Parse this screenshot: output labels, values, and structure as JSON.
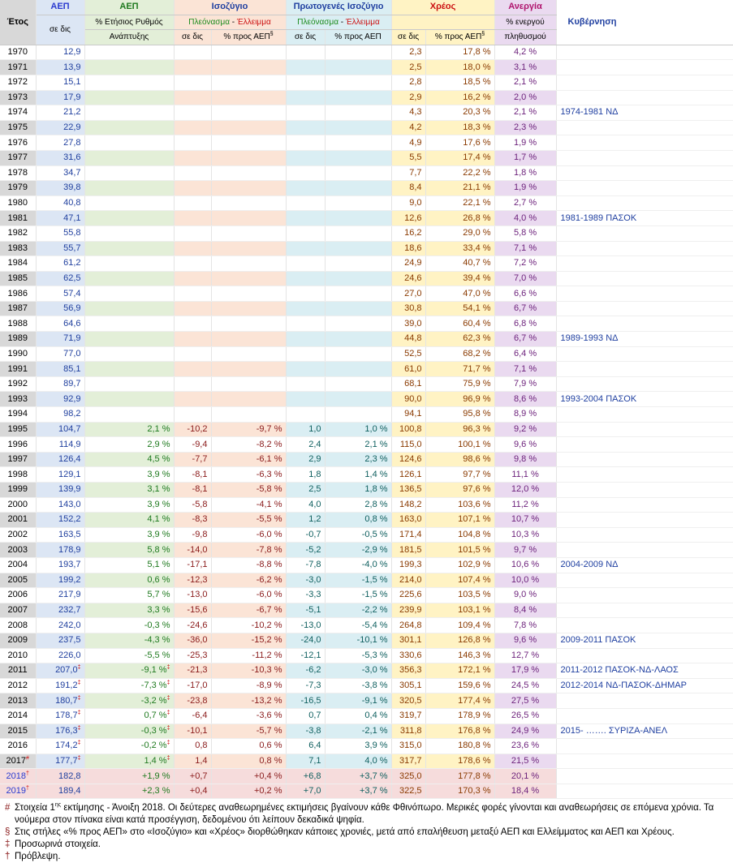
{
  "headers": {
    "year": "Έτος",
    "gdp_title": "ΑΕΠ",
    "gdp_unit": "σε δις",
    "growth_title": "ΑΕΠ",
    "growth_sub1": "% Ετήσιος Ρυθμός",
    "growth_sub2": "Ανάπτυξης",
    "balance_title": "Ισοζύγιο",
    "balance_surplus": "Πλεόνασμα",
    "balance_dash": " - ",
    "balance_deficit": "Έλλειμμα",
    "balance_col1": "σε δις",
    "balance_col2": "% προς ΑΕΠ",
    "balance_col2_sup": "§",
    "primary_title": "Πρωτογενές Ισοζύγιο",
    "primary_surplus": "Πλεόνασμα",
    "primary_dash": " - ",
    "primary_deficit": "Έλλειμμα",
    "primary_col1": "σε δις",
    "primary_col2": "% προς ΑΕΠ",
    "debt_title": "Χρέος",
    "debt_col1": "σε δις",
    "debt_col2": "% προς ΑΕΠ",
    "debt_col2_sup": "§",
    "unemp_title": "Ανεργία",
    "unemp_sub1": "% ενεργού",
    "unemp_sub2": "πληθυσμού",
    "gov_title": "Κυβέρνηση"
  },
  "rows": [
    {
      "year": "1970",
      "gdp": "12,9",
      "growth": "",
      "bal": "",
      "balp": "",
      "pri": "",
      "prip": "",
      "debt": "2,3",
      "debtp": "17,8 %",
      "unem": "4,2 %",
      "gov": ""
    },
    {
      "year": "1971",
      "gdp": "13,9",
      "growth": "",
      "bal": "",
      "balp": "",
      "pri": "",
      "prip": "",
      "debt": "2,5",
      "debtp": "18,0 %",
      "unem": "3,1 %",
      "gov": ""
    },
    {
      "year": "1972",
      "gdp": "15,1",
      "growth": "",
      "bal": "",
      "balp": "",
      "pri": "",
      "prip": "",
      "debt": "2,8",
      "debtp": "18,5 %",
      "unem": "2,1 %",
      "gov": ""
    },
    {
      "year": "1973",
      "gdp": "17,9",
      "growth": "",
      "bal": "",
      "balp": "",
      "pri": "",
      "prip": "",
      "debt": "2,9",
      "debtp": "16,2 %",
      "unem": "2,0 %",
      "gov": ""
    },
    {
      "year": "1974",
      "gdp": "21,2",
      "growth": "",
      "bal": "",
      "balp": "",
      "pri": "",
      "prip": "",
      "debt": "4,3",
      "debtp": "20,3 %",
      "unem": "2,1 %",
      "gov": "1974-1981 ΝΔ"
    },
    {
      "year": "1975",
      "gdp": "22,9",
      "growth": "",
      "bal": "",
      "balp": "",
      "pri": "",
      "prip": "",
      "debt": "4,2",
      "debtp": "18,3 %",
      "unem": "2,3 %",
      "gov": ""
    },
    {
      "year": "1976",
      "gdp": "27,8",
      "growth": "",
      "bal": "",
      "balp": "",
      "pri": "",
      "prip": "",
      "debt": "4,9",
      "debtp": "17,6 %",
      "unem": "1,9 %",
      "gov": ""
    },
    {
      "year": "1977",
      "gdp": "31,6",
      "growth": "",
      "bal": "",
      "balp": "",
      "pri": "",
      "prip": "",
      "debt": "5,5",
      "debtp": "17,4 %",
      "unem": "1,7 %",
      "gov": ""
    },
    {
      "year": "1978",
      "gdp": "34,7",
      "growth": "",
      "bal": "",
      "balp": "",
      "pri": "",
      "prip": "",
      "debt": "7,7",
      "debtp": "22,2 %",
      "unem": "1,8 %",
      "gov": ""
    },
    {
      "year": "1979",
      "gdp": "39,8",
      "growth": "",
      "bal": "",
      "balp": "",
      "pri": "",
      "prip": "",
      "debt": "8,4",
      "debtp": "21,1 %",
      "unem": "1,9 %",
      "gov": ""
    },
    {
      "year": "1980",
      "gdp": "40,8",
      "growth": "",
      "bal": "",
      "balp": "",
      "pri": "",
      "prip": "",
      "debt": "9,0",
      "debtp": "22,1 %",
      "unem": "2,7 %",
      "gov": ""
    },
    {
      "year": "1981",
      "gdp": "47,1",
      "growth": "",
      "bal": "",
      "balp": "",
      "pri": "",
      "prip": "",
      "debt": "12,6",
      "debtp": "26,8 %",
      "unem": "4,0 %",
      "gov": "1981-1989 ΠΑΣΟΚ"
    },
    {
      "year": "1982",
      "gdp": "55,8",
      "growth": "",
      "bal": "",
      "balp": "",
      "pri": "",
      "prip": "",
      "debt": "16,2",
      "debtp": "29,0 %",
      "unem": "5,8 %",
      "gov": ""
    },
    {
      "year": "1983",
      "gdp": "55,7",
      "growth": "",
      "bal": "",
      "balp": "",
      "pri": "",
      "prip": "",
      "debt": "18,6",
      "debtp": "33,4 %",
      "unem": "7,1 %",
      "gov": ""
    },
    {
      "year": "1984",
      "gdp": "61,2",
      "growth": "",
      "bal": "",
      "balp": "",
      "pri": "",
      "prip": "",
      "debt": "24,9",
      "debtp": "40,7 %",
      "unem": "7,2 %",
      "gov": ""
    },
    {
      "year": "1985",
      "gdp": "62,5",
      "growth": "",
      "bal": "",
      "balp": "",
      "pri": "",
      "prip": "",
      "debt": "24,6",
      "debtp": "39,4 %",
      "unem": "7,0 %",
      "gov": ""
    },
    {
      "year": "1986",
      "gdp": "57,4",
      "growth": "",
      "bal": "",
      "balp": "",
      "pri": "",
      "prip": "",
      "debt": "27,0",
      "debtp": "47,0 %",
      "unem": "6,6 %",
      "gov": ""
    },
    {
      "year": "1987",
      "gdp": "56,9",
      "growth": "",
      "bal": "",
      "balp": "",
      "pri": "",
      "prip": "",
      "debt": "30,8",
      "debtp": "54,1 %",
      "unem": "6,7 %",
      "gov": ""
    },
    {
      "year": "1988",
      "gdp": "64,6",
      "growth": "",
      "bal": "",
      "balp": "",
      "pri": "",
      "prip": "",
      "debt": "39,0",
      "debtp": "60,4 %",
      "unem": "6,8 %",
      "gov": ""
    },
    {
      "year": "1989",
      "gdp": "71,9",
      "growth": "",
      "bal": "",
      "balp": "",
      "pri": "",
      "prip": "",
      "debt": "44,8",
      "debtp": "62,3 %",
      "unem": "6,7 %",
      "gov": "1989-1993 ΝΔ"
    },
    {
      "year": "1990",
      "gdp": "77,0",
      "growth": "",
      "bal": "",
      "balp": "",
      "pri": "",
      "prip": "",
      "debt": "52,5",
      "debtp": "68,2 %",
      "unem": "6,4 %",
      "gov": ""
    },
    {
      "year": "1991",
      "gdp": "85,1",
      "growth": "",
      "bal": "",
      "balp": "",
      "pri": "",
      "prip": "",
      "debt": "61,0",
      "debtp": "71,7 %",
      "unem": "7,1 %",
      "gov": ""
    },
    {
      "year": "1992",
      "gdp": "89,7",
      "growth": "",
      "bal": "",
      "balp": "",
      "pri": "",
      "prip": "",
      "debt": "68,1",
      "debtp": "75,9 %",
      "unem": "7,9 %",
      "gov": ""
    },
    {
      "year": "1993",
      "gdp": "92,9",
      "growth": "",
      "bal": "",
      "balp": "",
      "pri": "",
      "prip": "",
      "debt": "90,0",
      "debtp": "96,9 %",
      "unem": "8,6 %",
      "gov": "1993-2004 ΠΑΣΟΚ"
    },
    {
      "year": "1994",
      "gdp": "98,2",
      "growth": "",
      "bal": "",
      "balp": "",
      "pri": "",
      "prip": "",
      "debt": "94,1",
      "debtp": "95,8 %",
      "unem": "8,9 %",
      "gov": ""
    },
    {
      "year": "1995",
      "gdp": "104,7",
      "growth": "2,1 %",
      "bal": "-10,2",
      "balp": "-9,7 %",
      "pri": "1,0",
      "prip": "1,0 %",
      "debt": "100,8",
      "debtp": "96,3 %",
      "unem": "9,2 %",
      "gov": ""
    },
    {
      "year": "1996",
      "gdp": "114,9",
      "growth": "2,9 %",
      "bal": "-9,4",
      "balp": "-8,2 %",
      "pri": "2,4",
      "prip": "2,1 %",
      "debt": "115,0",
      "debtp": "100,1 %",
      "unem": "9,6 %",
      "gov": ""
    },
    {
      "year": "1997",
      "gdp": "126,4",
      "growth": "4,5 %",
      "bal": "-7,7",
      "balp": "-6,1 %",
      "pri": "2,9",
      "prip": "2,3 %",
      "debt": "124,6",
      "debtp": "98,6 %",
      "unem": "9,8 %",
      "gov": ""
    },
    {
      "year": "1998",
      "gdp": "129,1",
      "growth": "3,9 %",
      "bal": "-8,1",
      "balp": "-6,3 %",
      "pri": "1,8",
      "prip": "1,4 %",
      "debt": "126,1",
      "debtp": "97,7 %",
      "unem": "11,1 %",
      "gov": ""
    },
    {
      "year": "1999",
      "gdp": "139,9",
      "growth": "3,1 %",
      "bal": "-8,1",
      "balp": "-5,8 %",
      "pri": "2,5",
      "prip": "1,8 %",
      "debt": "136,5",
      "debtp": "97,6 %",
      "unem": "12,0 %",
      "gov": ""
    },
    {
      "year": "2000",
      "gdp": "143,0",
      "growth": "3,9 %",
      "bal": "-5,8",
      "balp": "-4,1 %",
      "pri": "4,0",
      "prip": "2,8 %",
      "debt": "148,2",
      "debtp": "103,6 %",
      "unem": "11,2 %",
      "gov": ""
    },
    {
      "year": "2001",
      "gdp": "152,2",
      "growth": "4,1 %",
      "bal": "-8,3",
      "balp": "-5,5 %",
      "pri": "1,2",
      "prip": "0,8 %",
      "debt": "163,0",
      "debtp": "107,1 %",
      "unem": "10,7 %",
      "gov": ""
    },
    {
      "year": "2002",
      "gdp": "163,5",
      "growth": "3,9 %",
      "bal": "-9,8",
      "balp": "-6,0 %",
      "pri": "-0,7",
      "prip": "-0,5 %",
      "debt": "171,4",
      "debtp": "104,8 %",
      "unem": "10,3 %",
      "gov": ""
    },
    {
      "year": "2003",
      "gdp": "178,9",
      "growth": "5,8 %",
      "bal": "-14,0",
      "balp": "-7,8 %",
      "pri": "-5,2",
      "prip": "-2,9 %",
      "debt": "181,5",
      "debtp": "101,5 %",
      "unem": "9,7 %",
      "gov": ""
    },
    {
      "year": "2004",
      "gdp": "193,7",
      "growth": "5,1 %",
      "bal": "-17,1",
      "balp": "-8,8 %",
      "pri": "-7,8",
      "prip": "-4,0 %",
      "debt": "199,3",
      "debtp": "102,9 %",
      "unem": "10,6 %",
      "gov": "2004-2009 ΝΔ"
    },
    {
      "year": "2005",
      "gdp": "199,2",
      "growth": "0,6 %",
      "bal": "-12,3",
      "balp": "-6,2 %",
      "pri": "-3,0",
      "prip": "-1,5 %",
      "debt": "214,0",
      "debtp": "107,4 %",
      "unem": "10,0 %",
      "gov": ""
    },
    {
      "year": "2006",
      "gdp": "217,9",
      "growth": "5,7 %",
      "bal": "-13,0",
      "balp": "-6,0 %",
      "pri": "-3,3",
      "prip": "-1,5 %",
      "debt": "225,6",
      "debtp": "103,5 %",
      "unem": "9,0 %",
      "gov": ""
    },
    {
      "year": "2007",
      "gdp": "232,7",
      "growth": "3,3 %",
      "bal": "-15,6",
      "balp": "-6,7 %",
      "pri": "-5,1",
      "prip": "-2,2 %",
      "debt": "239,9",
      "debtp": "103,1 %",
      "unem": "8,4 %",
      "gov": ""
    },
    {
      "year": "2008",
      "gdp": "242,0",
      "growth": "-0,3 %",
      "bal": "-24,6",
      "balp": "-10,2 %",
      "pri": "-13,0",
      "prip": "-5,4 %",
      "debt": "264,8",
      "debtp": "109,4 %",
      "unem": "7,8 %",
      "gov": ""
    },
    {
      "year": "2009",
      "gdp": "237,5",
      "growth": "-4,3 %",
      "bal": "-36,0",
      "balp": "-15,2 %",
      "pri": "-24,0",
      "prip": "-10,1 %",
      "debt": "301,1",
      "debtp": "126,8 %",
      "unem": "9,6 %",
      "gov": "2009-2011 ΠΑΣΟΚ"
    },
    {
      "year": "2010",
      "gdp": "226,0",
      "growth": "-5,5 %",
      "bal": "-25,3",
      "balp": "-11,2 %",
      "pri": "-12,1",
      "prip": "-5,3 %",
      "debt": "330,6",
      "debtp": "146,3 %",
      "unem": "12,7 %",
      "gov": ""
    },
    {
      "year": "2011",
      "gdp": "207,0",
      "gdp_sup": "‡",
      "growth": "-9,1 %",
      "growth_sup": "‡",
      "bal": "-21,3",
      "balp": "-10,3 %",
      "pri": "-6,2",
      "prip": "-3,0 %",
      "debt": "356,3",
      "debtp": "172,1 %",
      "unem": "17,9 %",
      "gov": "2011-2012 ΠΑΣΟΚ-ΝΔ-ΛΑΟΣ"
    },
    {
      "year": "2012",
      "gdp": "191,2",
      "gdp_sup": "‡",
      "growth": "-7,3 %",
      "growth_sup": "‡",
      "bal": "-17,0",
      "balp": "-8,9 %",
      "pri": "-7,3",
      "prip": "-3,8 %",
      "debt": "305,1",
      "debtp": "159,6 %",
      "unem": "24,5 %",
      "gov": "2012-2014 ΝΔ-ΠΑΣΟΚ-ΔΗΜΑΡ"
    },
    {
      "year": "2013",
      "gdp": "180,7",
      "gdp_sup": "‡",
      "growth": "-3,2 %",
      "growth_sup": "‡",
      "bal": "-23,8",
      "balp": "-13,2 %",
      "pri": "-16,5",
      "prip": "-9,1 %",
      "debt": "320,5",
      "debtp": "177,4 %",
      "unem": "27,5 %",
      "gov": ""
    },
    {
      "year": "2014",
      "gdp": "178,7",
      "gdp_sup": "‡",
      "growth": "0,7 %",
      "growth_sup": "‡",
      "bal": "-6,4",
      "balp": "-3,6 %",
      "pri": "0,7",
      "prip": "0,4 %",
      "debt": "319,7",
      "debtp": "178,9 %",
      "unem": "26,5 %",
      "gov": ""
    },
    {
      "year": "2015",
      "gdp": "176,3",
      "gdp_sup": "‡",
      "growth": "-0,3 %",
      "growth_sup": "‡",
      "bal": "-10,1",
      "balp": "-5,7 %",
      "pri": "-3,8",
      "prip": "-2,1 %",
      "debt": "311,8",
      "debtp": "176,8 %",
      "unem": "24,9 %",
      "gov": "2015- ……. ΣΥΡΙΖΑ-ΑΝΕΛ"
    },
    {
      "year": "2016",
      "gdp": "174,2",
      "gdp_sup": "‡",
      "growth": "-0,2 %",
      "growth_sup": "‡",
      "bal": "0,8",
      "balp": "0,6 %",
      "pri": "6,4",
      "prip": "3,9 %",
      "debt": "315,0",
      "debtp": "180,8 %",
      "unem": "23,6 %",
      "gov": ""
    },
    {
      "year": "2017",
      "year_sup": "#",
      "gdp": "177,7",
      "gdp_sup": "‡",
      "growth": "1,4 %",
      "growth_sup": "‡",
      "bal": "1,4",
      "balp": "0,8 %",
      "pri": "7,1",
      "prip": "4,0 %",
      "debt": "317,7",
      "debtp": "178,6 %",
      "unem": "21,5 %",
      "gov": ""
    },
    {
      "year": "2018",
      "year_sup": "†",
      "gdp": "182,8",
      "growth": "+1,9 %",
      "bal": "+0,7",
      "balp": "+0,4 %",
      "pri": "+6,8",
      "prip": "+3,7 %",
      "debt": "325,0",
      "debtp": "177,8 %",
      "unem": "20,1 %",
      "gov": "",
      "proj": true
    },
    {
      "year": "2019",
      "year_sup": "†",
      "gdp": "189,4",
      "growth": "+2,3 %",
      "bal": "+0,4",
      "balp": "+0,2 %",
      "pri": "+7,0",
      "prip": "+3,7 %",
      "debt": "322,5",
      "debtp": "170,3 %",
      "unem": "18,4 %",
      "gov": "",
      "proj": true
    }
  ],
  "notes": [
    {
      "mark": "#",
      "text_a": "Στοιχεία 1",
      "text_sup": "ης",
      "text_b": " εκτίμησης - Άνοιξη 2018. Οι δεύτερες αναθεωρημένες εκτιμήσεις βγαίνουν κάθε Φθινόπωρο. Μερικές φορές γίνονται και αναθεωρήσεις σε επόμενα χρόνια. Τα νούμερα στον πίνακα είναι κατά προσέγγιση, δεδομένου ότι λείπουν δεκαδικά ψηφία."
    },
    {
      "mark": "§",
      "text_a": "Στις στήλες «% προς ΑΕΠ» στο «Ισοζύγιο» και «Χρέος» διορθώθηκαν κάποιες χρονιές, μετά από επαλήθευση μεταξύ ΑΕΠ και Ελλείμματος και ΑΕΠ και Χρέους.",
      "text_sup": "",
      "text_b": ""
    },
    {
      "mark": "‡",
      "text_a": "Προσωρινά στοιχεία.",
      "text_sup": "",
      "text_b": ""
    },
    {
      "mark": "†",
      "text_a": "Πρόβλεψη.",
      "text_sup": "",
      "text_b": ""
    }
  ]
}
